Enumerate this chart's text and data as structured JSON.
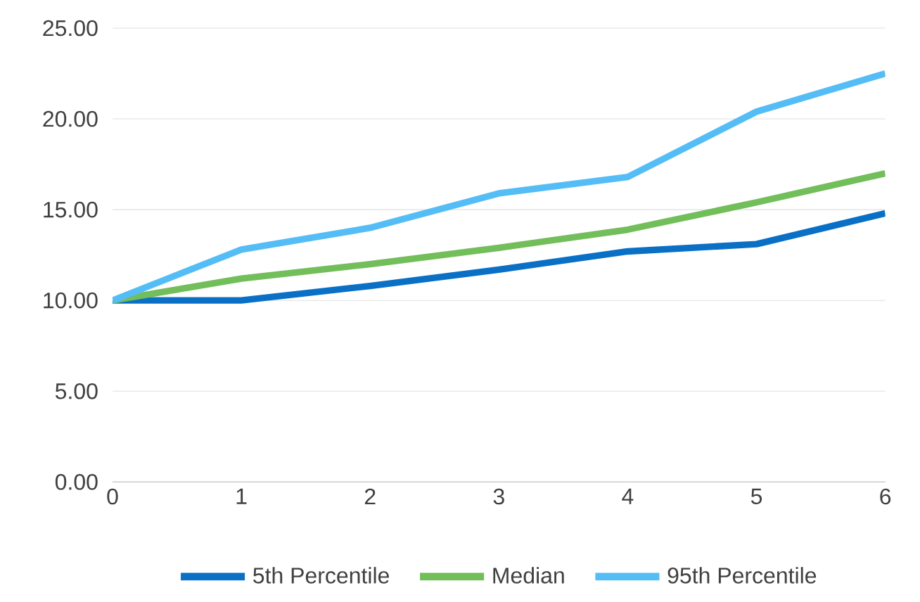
{
  "chart_data": {
    "type": "line",
    "x": [
      0,
      1,
      2,
      3,
      4,
      5,
      6
    ],
    "series": [
      {
        "name": "5th Percentile",
        "color": "#0a70c6",
        "values": [
          10,
          10,
          10.8,
          11.7,
          12.7,
          13.1,
          14.8
        ]
      },
      {
        "name": "Median",
        "color": "#72be5a",
        "values": [
          10,
          11.2,
          12.0,
          12.9,
          13.9,
          15.4,
          17.0
        ]
      },
      {
        "name": "95th Percentile",
        "color": "#55bdf6",
        "values": [
          10,
          12.8,
          14.0,
          15.9,
          16.8,
          20.4,
          22.5
        ]
      }
    ],
    "xlim": [
      0,
      6
    ],
    "xticks": [
      0,
      1,
      2,
      3,
      4,
      5,
      6
    ],
    "ylim": [
      0,
      25
    ],
    "yticks": [
      {
        "value": 0,
        "label": "0.00"
      },
      {
        "value": 5,
        "label": "5.00"
      },
      {
        "value": 10,
        "label": "10.00"
      },
      {
        "value": 15,
        "label": "15.00"
      },
      {
        "value": 20,
        "label": "20.00"
      },
      {
        "value": 25,
        "label": "25.00"
      }
    ],
    "grid": "y",
    "legend": "bottom",
    "marker": "none",
    "line_style": "solid"
  }
}
